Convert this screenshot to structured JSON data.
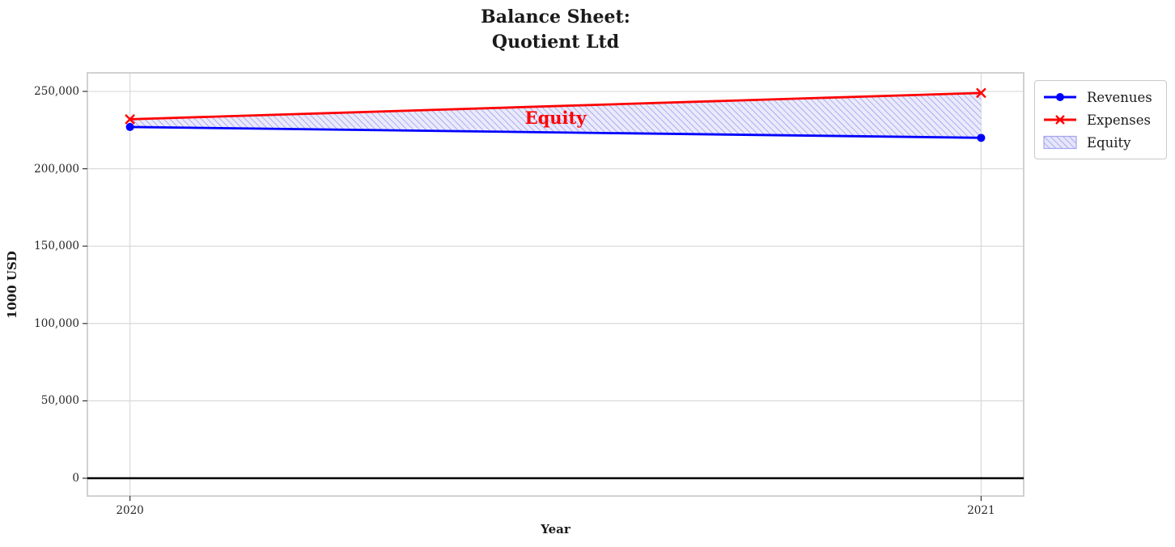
{
  "chart_data": {
    "type": "line",
    "title": "Balance Sheet:\nQuotient Ltd",
    "title_lines": [
      "Balance Sheet:",
      "Quotient Ltd"
    ],
    "xlabel": "Year",
    "ylabel": "1000 USD",
    "x": [
      2020,
      2021
    ],
    "xtick_labels": [
      "2020",
      "2021"
    ],
    "ytick_values": [
      0,
      50000,
      100000,
      150000,
      200000,
      250000
    ],
    "ytick_labels": [
      "0",
      "50,000",
      "100,000",
      "150,000",
      "200,000",
      "250,000"
    ],
    "xlim": [
      2019.95,
      2021.05
    ],
    "ylim": [
      -11500,
      262000
    ],
    "grid": true,
    "legend_position": "outside-upper-right",
    "series": [
      {
        "name": "Revenues",
        "color": "#0000ff",
        "marker": "circle",
        "values": [
          227000,
          220000
        ]
      },
      {
        "name": "Expenses",
        "color": "#ff0000",
        "marker": "x",
        "values": [
          232000,
          249000
        ]
      }
    ],
    "fill_between": {
      "label": "Equity",
      "between": [
        "Expenses",
        "Revenues"
      ],
      "facecolor": "#e6e6fa",
      "hatch": "//",
      "hatch_color": "#8c8cee",
      "patch_edge_color": "#a4a4f0",
      "annotation": {
        "text": "Equity",
        "color": "#ff0000"
      }
    },
    "zero_line_color": "#000000",
    "grid_color": "#d9d9d9",
    "axes_edge_color": "#cccccc",
    "tick_label_color": "#262626"
  },
  "legend": {
    "entries": [
      "Revenues",
      "Expenses",
      "Equity"
    ]
  }
}
